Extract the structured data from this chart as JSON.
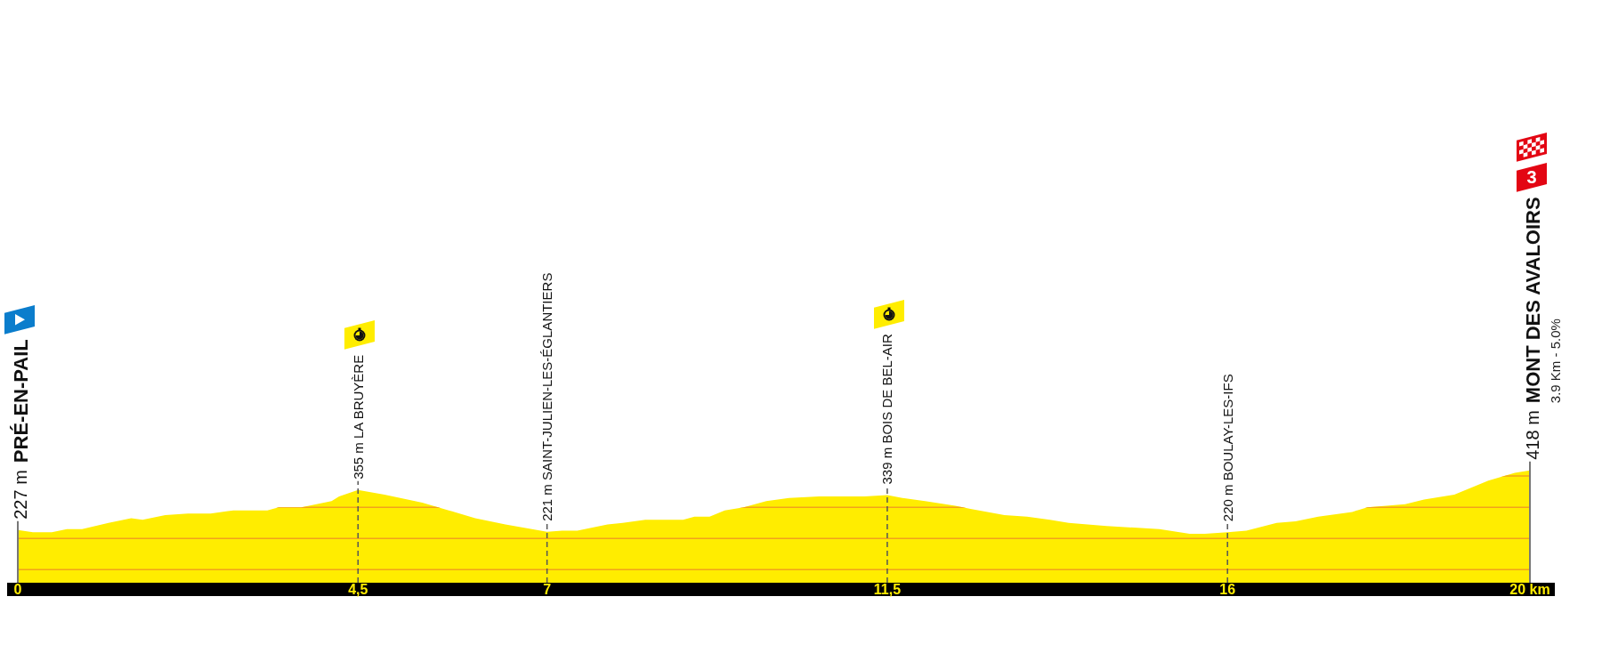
{
  "chart_data": {
    "type": "area",
    "x": [
      0,
      0.2,
      0.45,
      0.65,
      0.85,
      1.2,
      1.5,
      1.65,
      1.95,
      2.25,
      2.55,
      2.85,
      3.3,
      3.45,
      3.75,
      3.95,
      4.15,
      4.25,
      4.5,
      4.85,
      5.35,
      5.7,
      6.05,
      6.45,
      6.8,
      7,
      7.2,
      7.4,
      7.8,
      8,
      8.3,
      8.8,
      8.95,
      9.15,
      9.35,
      9.6,
      9.9,
      10.2,
      10.6,
      11.2,
      11.5,
      11.7,
      12,
      12.4,
      12.6,
      13.05,
      13.35,
      13.65,
      13.9,
      14.4,
      15.1,
      15.5,
      15.7,
      16,
      16.25,
      16.65,
      16.9,
      17.2,
      17.65,
      17.85,
      18.35,
      18.6,
      19,
      19.45,
      19.8,
      20
    ],
    "values": [
      227,
      220,
      220,
      230,
      230,
      250,
      265,
      260,
      275,
      280,
      280,
      290,
      290,
      300,
      300,
      310,
      320,
      335,
      355,
      340,
      315,
      290,
      265,
      245,
      230,
      221,
      225,
      225,
      245,
      250,
      260,
      260,
      270,
      270,
      290,
      300,
      320,
      330,
      335,
      335,
      339,
      330,
      320,
      305,
      295,
      275,
      270,
      260,
      250,
      240,
      230,
      215,
      215,
      220,
      225,
      250,
      255,
      270,
      285,
      300,
      310,
      325,
      340,
      385,
      410,
      418
    ],
    "value_labels": [
      "227 m PRÉ-EN-PAIL",
      null,
      null,
      null,
      null,
      null,
      null,
      null,
      null,
      null,
      null,
      null,
      null,
      null,
      null,
      null,
      null,
      null,
      "355 m LA BRUYÈRE",
      null,
      null,
      null,
      null,
      null,
      null,
      "221 m SAINT-JULIEN-LES-ÉGLANTIERS",
      null,
      null,
      null,
      null,
      null,
      null,
      null,
      null,
      null,
      null,
      null,
      null,
      null,
      null,
      "339 m BOIS DE BEL-AIR",
      null,
      null,
      null,
      null,
      null,
      null,
      null,
      null,
      null,
      null,
      null,
      null,
      "220 m BOULAY-LES-IFS",
      null,
      null,
      null,
      null,
      null,
      null,
      null,
      null,
      null,
      null,
      null,
      "418 m MONT DES AVALOIRS"
    ],
    "color": "#ffed00",
    "xlim": [
      0,
      20
    ],
    "xticks": [
      0,
      {
        "value": 4.5,
        "label": "4,5"
      },
      7,
      {
        "value": 11.5,
        "label": "11,5"
      },
      16,
      {
        "value": 20,
        "label": "20 km"
      }
    ],
    "grid": "x",
    "ref_lines": [
      {
        "axis": "y",
        "value": 100,
        "color": "#f2a21c"
      },
      {
        "axis": "y",
        "value": 200,
        "color": "#f2a21c"
      },
      {
        "axis": "y",
        "value": 300,
        "color": "#f2a21c"
      },
      {
        "axis": "y",
        "value": 400,
        "color": "#f2a21c"
      }
    ],
    "annotations": [
      "3.9 Km - 5.0%",
      "3"
    ]
  }
}
